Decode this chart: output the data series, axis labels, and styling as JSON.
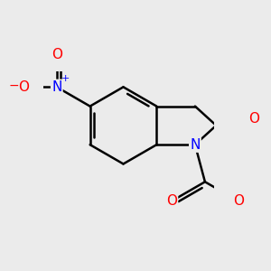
{
  "bg_color": "#ebebeb",
  "bond_color": "#000000",
  "bond_width": 1.8,
  "atom_colors": {
    "N": "#0000ff",
    "O": "#ff0000",
    "C": "#000000"
  },
  "font_size_atoms": 11,
  "fig_size": [
    3.0,
    3.0
  ],
  "dpi": 100
}
